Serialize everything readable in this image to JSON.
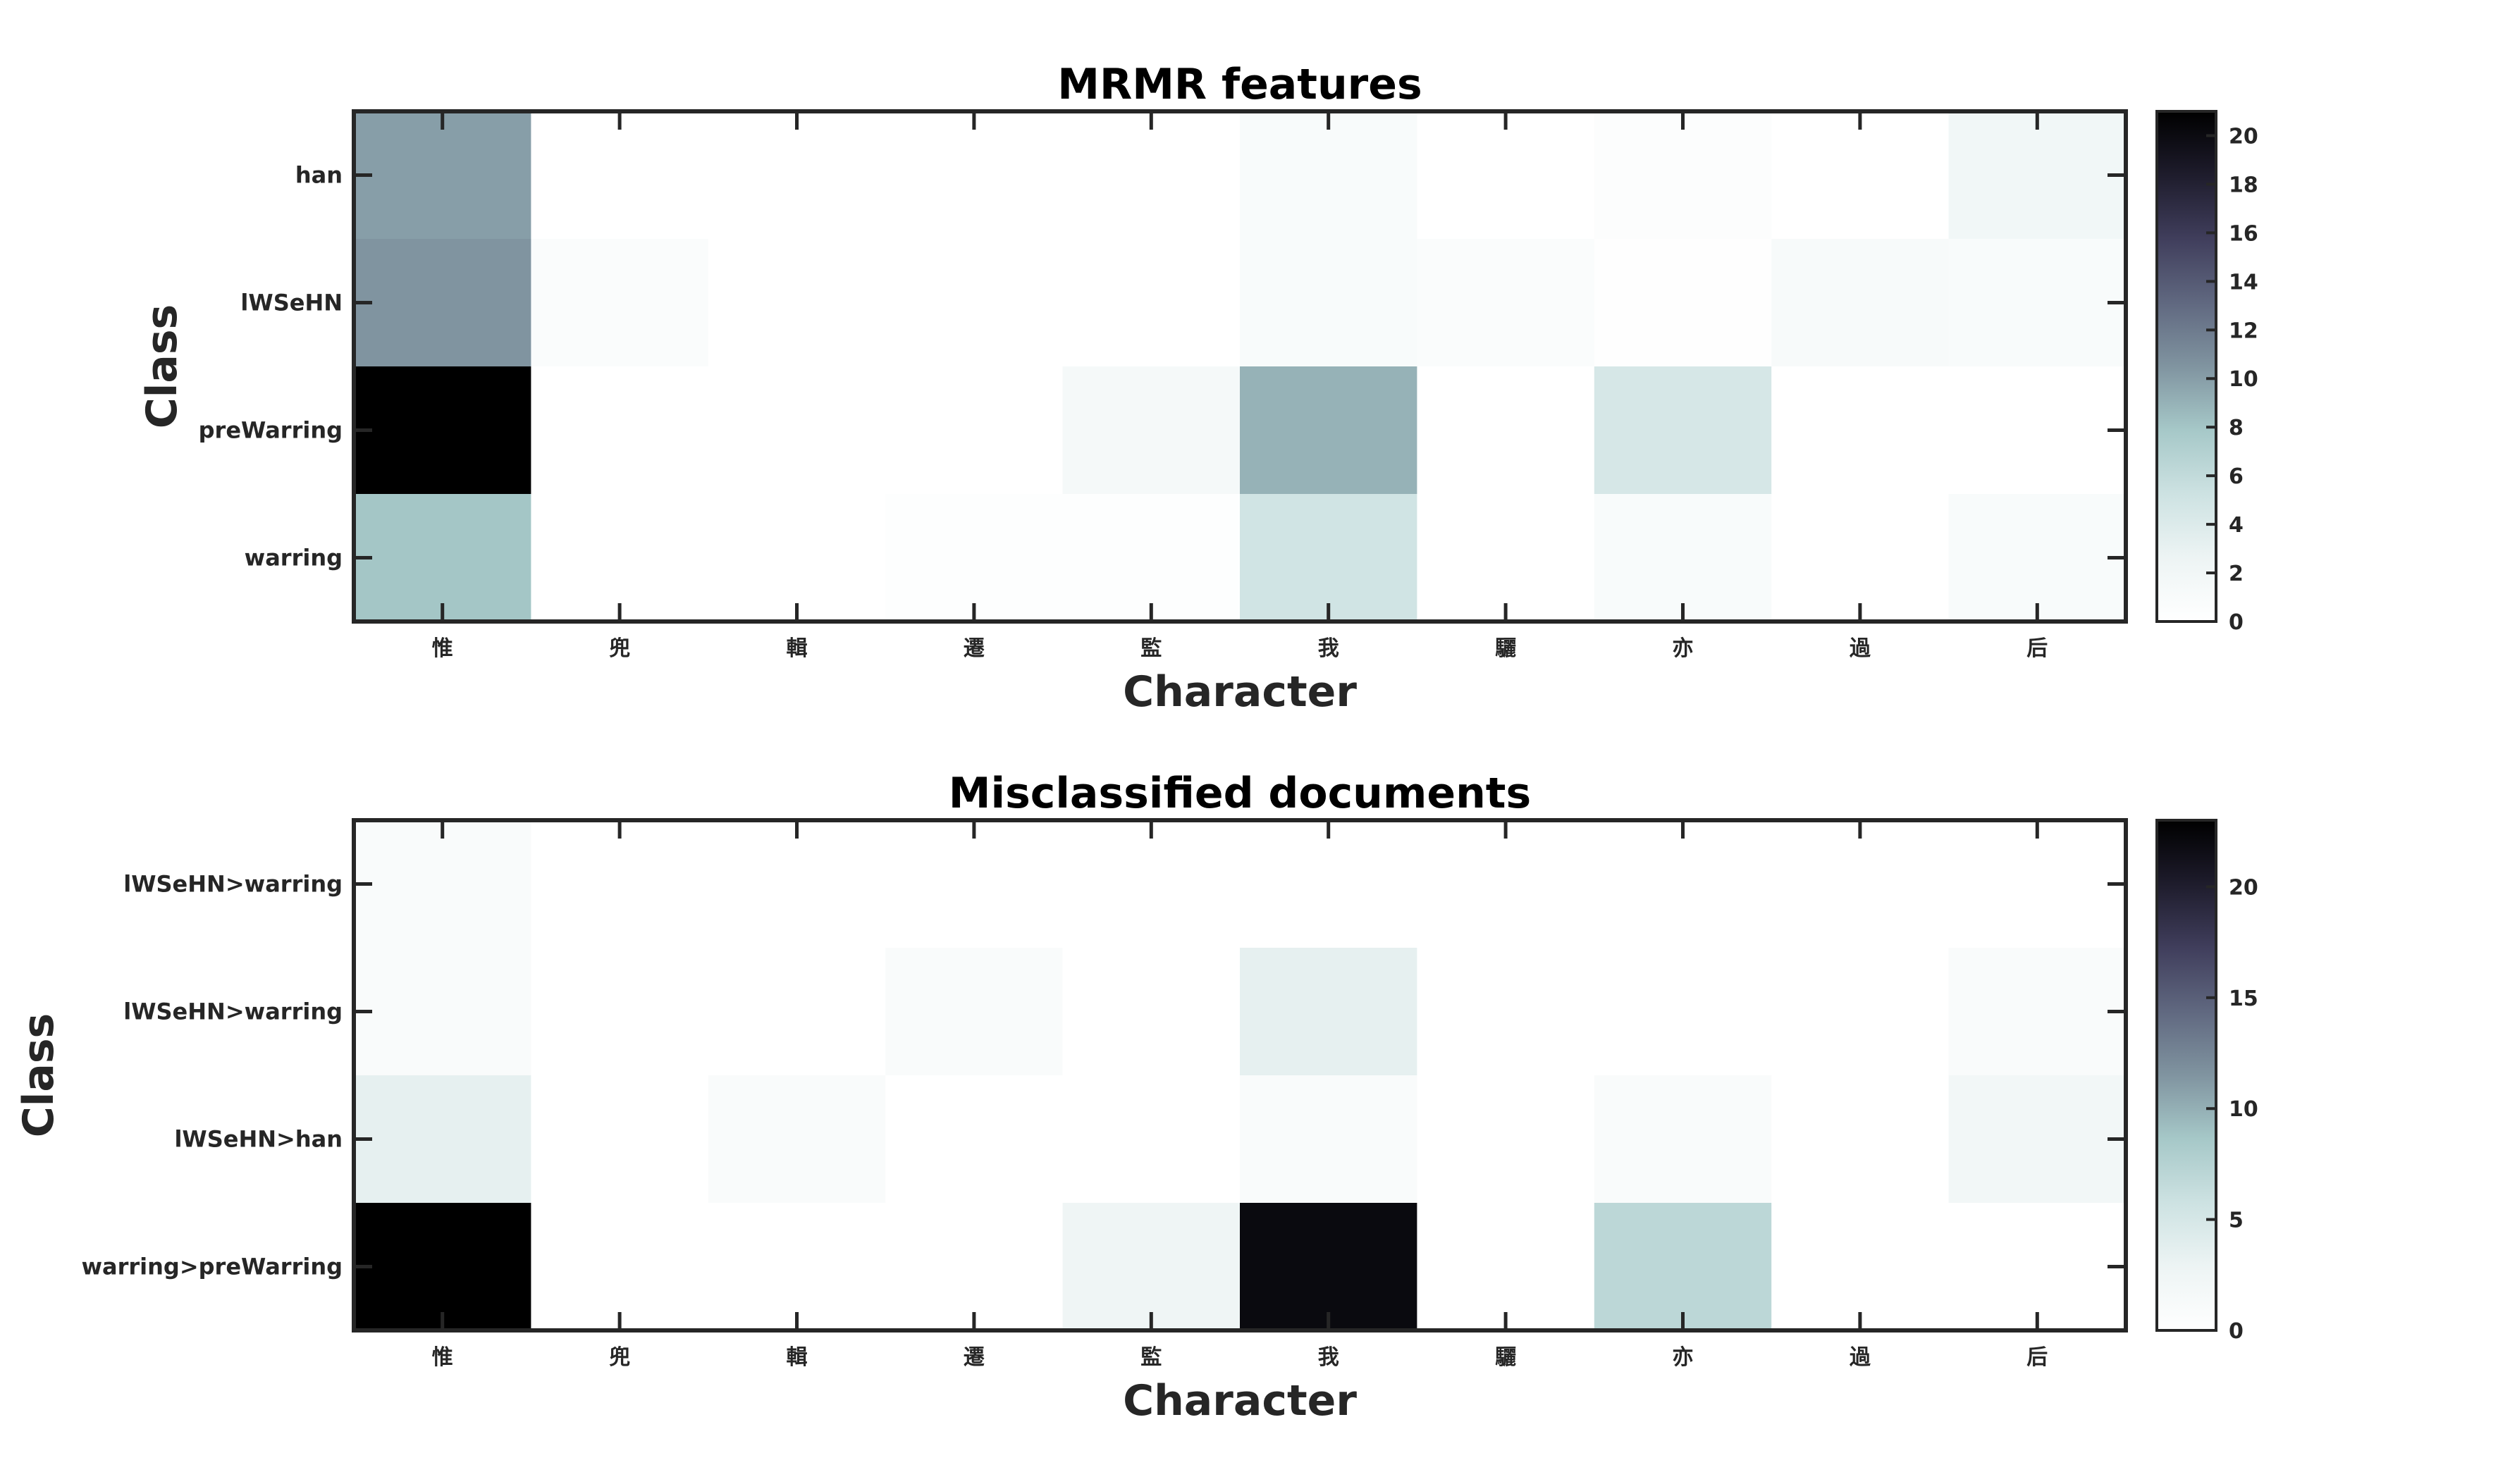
{
  "chart_data": [
    {
      "type": "heatmap",
      "title": "MRMR features",
      "xlabel": "Character",
      "ylabel": "Class",
      "x_categories": [
        "惟",
        "兜",
        "輯",
        "遷",
        "監",
        "我",
        "驪",
        "亦",
        "過",
        "后"
      ],
      "y_categories": [
        "han",
        "lWSeHN",
        "preWarring",
        "warring"
      ],
      "values": [
        [
          10,
          0,
          0,
          0,
          0,
          1,
          0,
          0.4,
          0,
          2
        ],
        [
          10.5,
          0.7,
          0,
          0,
          0,
          1,
          0.7,
          0.2,
          1.2,
          1
        ],
        [
          21,
          0,
          0,
          0,
          1.5,
          9,
          0,
          4.5,
          0,
          0
        ],
        [
          8,
          0,
          0,
          0.3,
          0.3,
          5,
          0,
          1,
          0,
          1
        ]
      ],
      "colormap": "bone_r",
      "colorbar": {
        "min": 0,
        "max": 21,
        "ticks": [
          0,
          2,
          4,
          6,
          8,
          10,
          12,
          14,
          16,
          18,
          20
        ]
      },
      "grid": false
    },
    {
      "type": "heatmap",
      "title": "Misclassified documents",
      "xlabel": "Character",
      "ylabel": "Class",
      "x_categories": [
        "惟",
        "兜",
        "輯",
        "遷",
        "監",
        "我",
        "驪",
        "亦",
        "過",
        "后"
      ],
      "y_categories": [
        "lWSeHN>warring",
        "lWSeHN>warring",
        "lWSeHN>han",
        "warring>preWarring"
      ],
      "values": [
        [
          1,
          0,
          0,
          0,
          0,
          0,
          0,
          0,
          0,
          0
        ],
        [
          1,
          0,
          0,
          1,
          0,
          3.5,
          0,
          0,
          0,
          1
        ],
        [
          3.5,
          0,
          1,
          0,
          0,
          1,
          0,
          1,
          0,
          2
        ],
        [
          23,
          0,
          0,
          0,
          2.5,
          22,
          0,
          7,
          0,
          0
        ]
      ],
      "colormap": "bone_r",
      "colorbar": {
        "min": 0,
        "max": 23,
        "ticks": [
          0,
          5,
          10,
          15,
          20
        ]
      },
      "grid": false
    }
  ]
}
